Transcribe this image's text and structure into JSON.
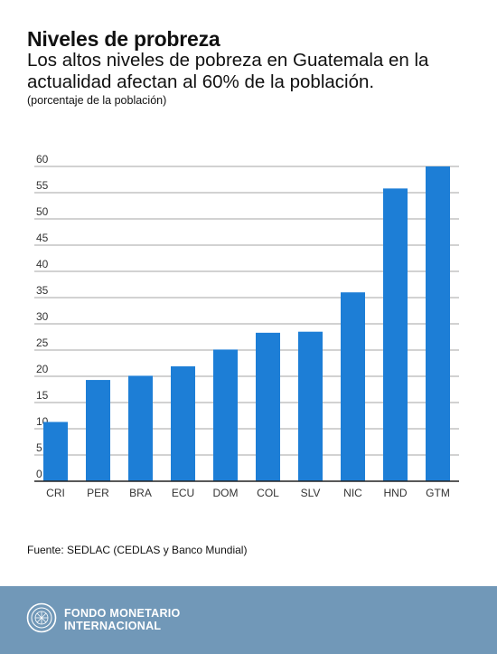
{
  "title": "Niveles de probreza",
  "subtitle": "Los altos niveles de pobreza en Guatemala en la actualidad afectan al 60% de la población.",
  "units": "(porcentaje de la población)",
  "source": "Fuente: SEDLAC (CEDLAS y Banco Mundial)",
  "footer": {
    "org_line1": "FONDO MONETARIO",
    "org_line2": "INTERNACIONAL",
    "logo_icon": "imf-seal-icon"
  },
  "colors": {
    "bar": "#1d7ed6",
    "footer": "#7198b8",
    "grid": "#888888",
    "axis": "#222222"
  },
  "chart_data": {
    "type": "bar",
    "categories": [
      "CRI",
      "PER",
      "BRA",
      "ECU",
      "DOM",
      "COL",
      "SLV",
      "NIC",
      "HND",
      "GTM"
    ],
    "values": [
      11.3,
      19.3,
      20.1,
      21.9,
      25.1,
      28.3,
      28.5,
      36.0,
      55.8,
      60.0
    ],
    "yticks": [
      0,
      5,
      10,
      15,
      20,
      25,
      30,
      35,
      40,
      45,
      50,
      55,
      60
    ],
    "ylim": [
      0,
      60
    ],
    "grid": true,
    "legend": "none"
  }
}
